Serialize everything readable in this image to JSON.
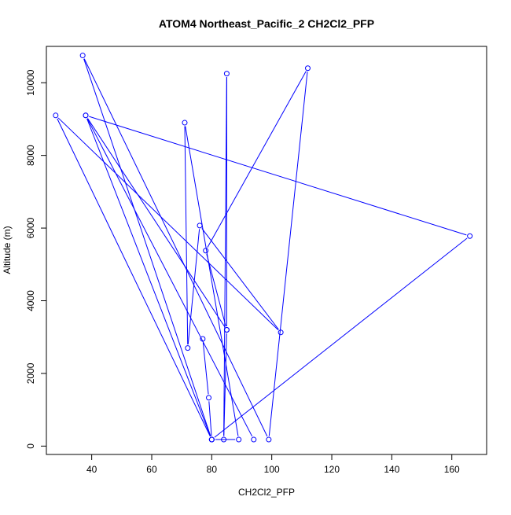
{
  "chart_data": {
    "type": "line",
    "title": "ATOM4 Northeast_Pacific_2 CH2Cl2_PFP",
    "xlabel": "CH2Cl2_PFP",
    "ylabel": "Altitude (m)",
    "xlim": [
      24.9,
      171.6
    ],
    "ylim": [
      -230,
      11000
    ],
    "xticks": [
      40,
      60,
      80,
      100,
      120,
      140,
      160
    ],
    "yticks": [
      0,
      2000,
      4000,
      6000,
      8000,
      10000
    ],
    "grid": false,
    "line_color": "#0000ff",
    "marker": "open-circle",
    "series": [
      {
        "x": [
          94,
          38,
          80,
          37,
          99,
          112,
          78,
          85,
          85,
          84,
          85,
          38,
          166,
          80,
          28,
          103,
          76,
          72,
          71,
          89,
          80,
          79,
          77
        ],
        "y": [
          180,
          9100,
          180,
          10750,
          180,
          10400,
          5380,
          3200,
          10250,
          180,
          3200,
          9100,
          5780,
          180,
          9100,
          3130,
          6070,
          2700,
          8900,
          180,
          180,
          1330,
          2950
        ]
      }
    ]
  }
}
